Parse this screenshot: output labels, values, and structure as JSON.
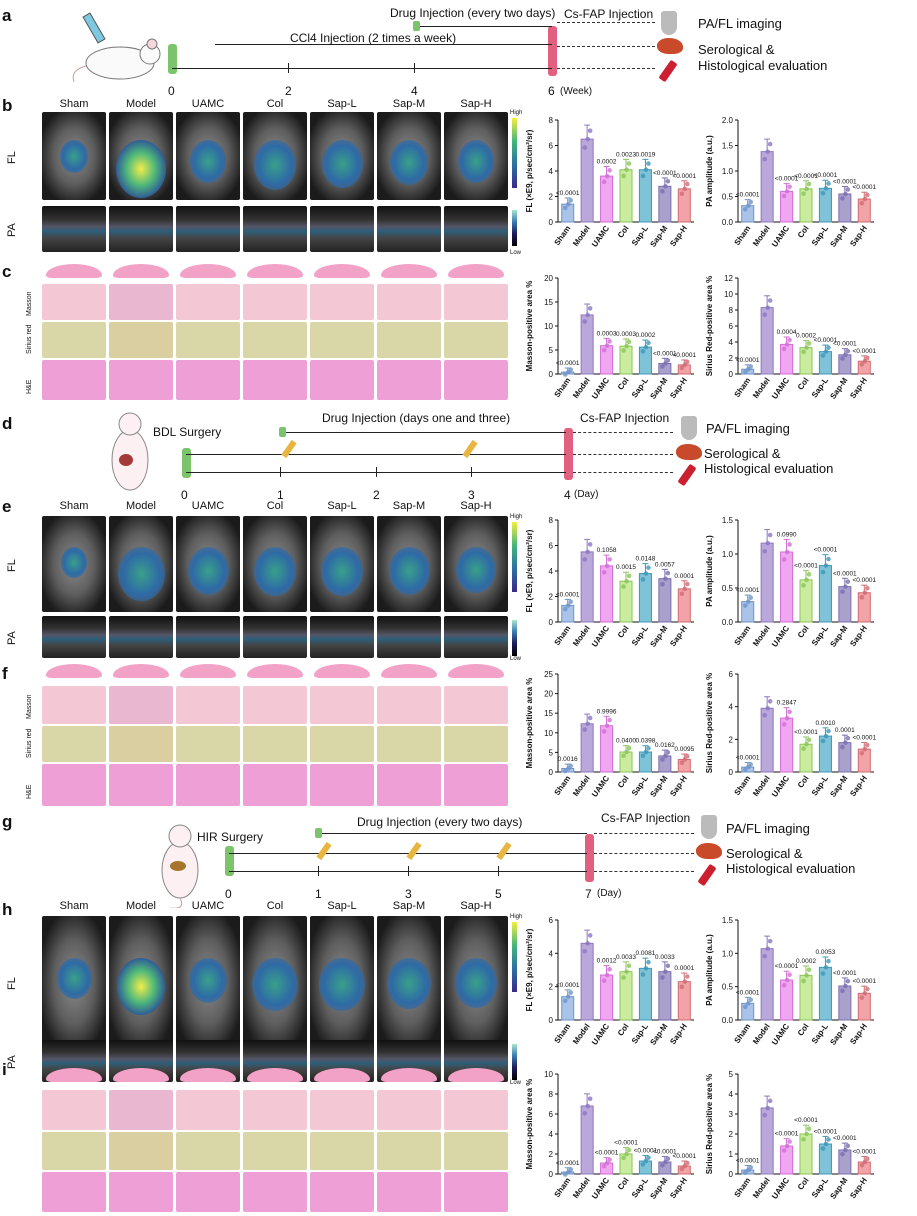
{
  "panels": {
    "a": {
      "label": "a",
      "drug": "Drug Injection  (every two days)",
      "ccl4": "CCl4 Injection  (2 times a week)",
      "csfap": "Cs-FAP Injection",
      "out1": "PA/FL imaging",
      "out2": "Serological &",
      "out3": "Histological evaluation",
      "ticks": [
        "0",
        "2",
        "4",
        "6"
      ],
      "unit": "(Week)"
    },
    "b": {
      "label": "b"
    },
    "c": {
      "label": "c"
    },
    "d": {
      "label": "d",
      "surgery": "BDL Surgery",
      "drug": "Drug Injection (days one and three)",
      "csfap": "Cs-FAP Injection",
      "out1": "PA/FL imaging",
      "out2": "Serological &",
      "out3": "Histological evaluation",
      "ticks": [
        "0",
        "1",
        "2",
        "3",
        "4"
      ],
      "unit": "(Day)"
    },
    "e": {
      "label": "e"
    },
    "f": {
      "label": "f"
    },
    "g": {
      "label": "g",
      "surgery": "HIR Surgery",
      "drug": "Drug Injection (every two days)",
      "csfap": "Cs-FAP Injection",
      "out1": "PA/FL imaging",
      "out2": "Serological &",
      "out3": "Histological evaluation",
      "ticks": [
        "0",
        "1",
        "3",
        "5",
        "7"
      ],
      "unit": "(Day)"
    },
    "h": {
      "label": "h"
    },
    "i": {
      "label": "i"
    }
  },
  "groups": [
    "Sham",
    "Model",
    "UAMC",
    "Col",
    "Sap-L",
    "Sap-M",
    "Sap-H"
  ],
  "row_labels": {
    "fl": "FL",
    "pa": "PA",
    "masson": "Masson",
    "sirius": "Sirius red",
    "he": "H&E"
  },
  "colorbar": {
    "high": "High",
    "low": "Low"
  },
  "colors": {
    "bars": [
      "#a9c4e8",
      "#b9a8d9",
      "#f0a6f0",
      "#c9ec9e",
      "#7fc3d8",
      "#a9a0cc",
      "#f2a3a8"
    ],
    "edges": [
      "#6f94c8",
      "#8c77c2",
      "#d26fd6",
      "#8cc45a",
      "#3f97b8",
      "#7a6fb0",
      "#d06b73"
    ],
    "timeline_start": "#7cc46b",
    "timeline_end": "#e2607f"
  },
  "chart_data": [
    {
      "id": "b-fl",
      "type": "bar",
      "ylabel": "FL (×E9, p/sec/cm²/sr)",
      "ylim": [
        0,
        8
      ],
      "yticks": [
        0,
        2,
        4,
        6,
        8
      ],
      "values": [
        1.4,
        6.5,
        3.6,
        4.1,
        4.1,
        2.8,
        2.6
      ],
      "annotations": [
        "<0.0001",
        "",
        "0.0002",
        "0.0023",
        "0.0019",
        "<0.0001",
        "<0.0001"
      ]
    },
    {
      "id": "b-pa",
      "type": "bar",
      "ylabel": "PA amplitude (a.u.)",
      "ylim": [
        0,
        2
      ],
      "yticks": [
        "0.0",
        "0.5",
        "1.0",
        "1.5",
        "2.0"
      ],
      "values": [
        0.32,
        1.38,
        0.6,
        0.65,
        0.66,
        0.55,
        0.45
      ],
      "annotations": [
        "<0.0001",
        "",
        "<0.0001",
        "<0.0001",
        "<0.0001",
        "<0.0001",
        "<0.0001"
      ]
    },
    {
      "id": "c-masson",
      "type": "bar",
      "ylabel": "Masson-positive area %",
      "ylim": [
        0,
        20
      ],
      "yticks": [
        0,
        5,
        10,
        15,
        20
      ],
      "values": [
        0.4,
        12.3,
        5.9,
        5.8,
        5.6,
        2.2,
        1.9
      ],
      "annotations": [
        "<0.0001",
        "",
        "0.0003",
        "0.0003",
        "0.0002",
        "<0.0001",
        "<0.0001"
      ]
    },
    {
      "id": "c-sirius",
      "type": "bar",
      "ylabel": "Sirius Red-positive area %",
      "ylim": [
        0,
        12
      ],
      "yticks": [
        0,
        2,
        4,
        6,
        8,
        10,
        12
      ],
      "values": [
        0.6,
        8.3,
        3.7,
        3.3,
        2.8,
        2.4,
        1.6
      ],
      "annotations": [
        "<0.0001",
        "",
        "0.0004",
        "0.0002",
        "<0.0001",
        "<0.0001",
        "<0.0001"
      ]
    },
    {
      "id": "e-fl",
      "type": "bar",
      "ylabel": "FL (×E9, p/sec/cm²/sr)",
      "ylim": [
        0,
        8
      ],
      "yticks": [
        0,
        2,
        4,
        6,
        8
      ],
      "values": [
        1.3,
        5.5,
        4.4,
        3.2,
        3.8,
        3.4,
        2.6
      ],
      "annotations": [
        "<0.0001",
        "",
        "0.1058",
        "0.0015",
        "0.0148",
        "0.0057",
        "0.0001"
      ]
    },
    {
      "id": "e-pa",
      "type": "bar",
      "ylabel": "PA amplitude (a.u.)",
      "ylim": [
        0,
        1.5
      ],
      "yticks": [
        "0.0",
        "0.5",
        "1.0",
        "1.5"
      ],
      "values": [
        0.3,
        1.16,
        1.03,
        0.62,
        0.83,
        0.52,
        0.43
      ],
      "annotations": [
        "<0.0001",
        "",
        "0.0990",
        "<0.0001",
        "<0.0001",
        "<0.0001",
        "<0.0001"
      ]
    },
    {
      "id": "f-masson",
      "type": "bar",
      "ylabel": "Masson-positive area %",
      "ylim": [
        0,
        25
      ],
      "yticks": [
        0,
        5,
        10,
        15,
        20,
        25
      ],
      "values": [
        0.9,
        12.3,
        11.8,
        5.1,
        5.1,
        4.1,
        3.2
      ],
      "annotations": [
        "0.0016",
        "",
        "0.9996",
        "0.0400",
        "0.0398",
        "0.0162",
        "0.0095"
      ]
    },
    {
      "id": "f-sirius",
      "type": "bar",
      "ylabel": "Sirius Red-positive area %",
      "ylim": [
        0,
        6
      ],
      "yticks": [
        0,
        2,
        4,
        6
      ],
      "values": [
        0.3,
        3.9,
        3.3,
        1.7,
        2.2,
        1.8,
        1.4
      ],
      "annotations": [
        "<0.0001",
        "",
        "0.2847",
        "<0.0001",
        "0.0010",
        "0.0001",
        "<0.0001"
      ]
    },
    {
      "id": "h-fl",
      "type": "bar",
      "ylabel": "FL (×E9, p/sec/cm²/sr)",
      "ylim": [
        0,
        6
      ],
      "yticks": [
        0,
        2,
        4,
        6
      ],
      "values": [
        1.4,
        4.6,
        2.7,
        2.9,
        3.1,
        2.9,
        2.3
      ],
      "annotations": [
        "<0.0001",
        "",
        "0.0012",
        "0.0033",
        "0.0081",
        "0.0033",
        "0.0001"
      ]
    },
    {
      "id": "h-pa",
      "type": "bar",
      "ylabel": "PA amplitude (a.u.)",
      "ylim": [
        0,
        1.5
      ],
      "yticks": [
        "0.0",
        "0.5",
        "1.0",
        "1.5"
      ],
      "values": [
        0.25,
        1.07,
        0.6,
        0.67,
        0.79,
        0.51,
        0.4
      ],
      "annotations": [
        "<0.0001",
        "",
        "<0.0001",
        "0.0002",
        "0.0053",
        "<0.0001",
        "<0.0001"
      ]
    },
    {
      "id": "i-masson",
      "type": "bar",
      "ylabel": "Masson-positive area %",
      "ylim": [
        0,
        10
      ],
      "yticks": [
        0,
        2,
        4,
        6,
        8,
        10
      ],
      "values": [
        0.2,
        6.8,
        1.1,
        2.0,
        1.3,
        1.2,
        0.8
      ],
      "annotations": [
        "<0.0001",
        "",
        "<0.0001",
        "<0.0001",
        "<0.0001",
        "<0.0001",
        "<0.0001"
      ]
    },
    {
      "id": "i-sirius",
      "type": "bar",
      "ylabel": "Sirius Red-positive area %",
      "ylim": [
        0,
        5
      ],
      "yticks": [
        0,
        1,
        2,
        3,
        4,
        5
      ],
      "values": [
        0.2,
        3.3,
        1.4,
        2.0,
        1.5,
        1.2,
        0.6
      ],
      "annotations": [
        "<0.0001",
        "",
        "<0.0001",
        "<0.0001",
        "<0.0001",
        "<0.0001",
        "<0.0001"
      ]
    }
  ]
}
